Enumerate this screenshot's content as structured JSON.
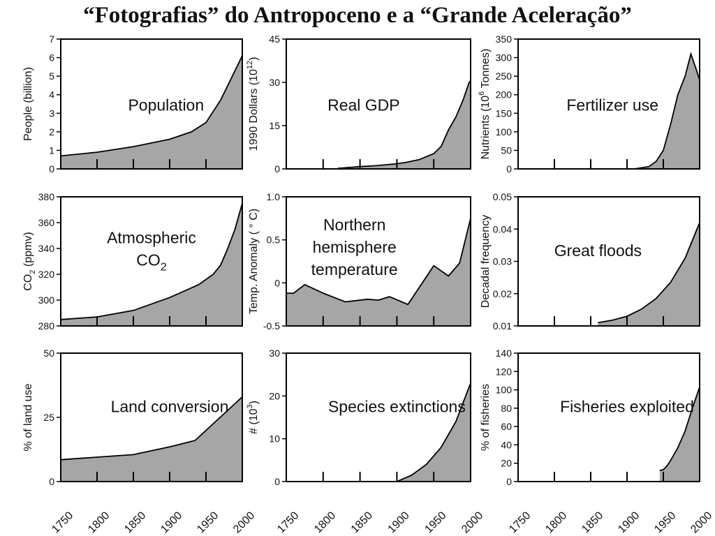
{
  "title": "“Fotografias” do Antropoceno e a “Grande Aceleração”",
  "colors": {
    "fill": "#a6a6a6",
    "line": "#000000",
    "background": "#ffffff"
  },
  "x_axis_ticks": [
    "1750",
    "1800",
    "1850",
    "1900",
    "1950",
    "2000"
  ],
  "chart_data": [
    {
      "id": "population",
      "type": "area",
      "label_lines": [
        "Population"
      ],
      "ylabel": "People (billion)",
      "ylabel_sup": "",
      "ylim": [
        0,
        7
      ],
      "yticks": [
        "0",
        "1",
        "2",
        "3",
        "4",
        "5",
        "6",
        "7"
      ],
      "ytick_values": [
        0,
        1,
        2,
        3,
        4,
        5,
        6,
        7
      ],
      "x": [
        1750,
        1800,
        1850,
        1900,
        1930,
        1950,
        1970,
        1990,
        2000
      ],
      "y": [
        0.7,
        0.9,
        1.2,
        1.6,
        2.0,
        2.5,
        3.7,
        5.3,
        6.1
      ]
    },
    {
      "id": "real-gdp",
      "type": "area",
      "label_lines": [
        "Real GDP"
      ],
      "ylabel": "1990 Dollars (10",
      "ylabel_sup": "12",
      "ylabel_close": ")",
      "ylim": [
        0,
        45
      ],
      "yticks": [
        "0",
        "15",
        "30",
        "45"
      ],
      "ytick_values": [
        0,
        15,
        30,
        45
      ],
      "x": [
        1820,
        1850,
        1870,
        1900,
        1913,
        1930,
        1950,
        1960,
        1970,
        1980,
        1990,
        1998,
        2000
      ],
      "y": [
        0.2,
        0.8,
        1.1,
        1.8,
        2.3,
        3.2,
        5.3,
        7.8,
        13.5,
        18.0,
        24.0,
        30.0,
        30.5
      ]
    },
    {
      "id": "fertilizer-use",
      "type": "area",
      "label_lines": [
        "Fertilizer use"
      ],
      "ylabel": "Nutrients (10",
      "ylabel_sup": "6",
      "ylabel_close": " Tonnes)",
      "ylim": [
        0,
        350
      ],
      "yticks": [
        "0",
        "50",
        "100",
        "150",
        "200",
        "250",
        "300",
        "350"
      ],
      "ytick_values": [
        0,
        50,
        100,
        150,
        200,
        250,
        300,
        350
      ],
      "x": [
        1910,
        1930,
        1940,
        1950,
        1960,
        1970,
        1980,
        1988,
        1995,
        2000
      ],
      "y": [
        0,
        6,
        20,
        50,
        120,
        200,
        250,
        310,
        270,
        240
      ]
    },
    {
      "id": "atmospheric-co2",
      "type": "area",
      "label_lines": [
        "Atmospheric",
        "CO2"
      ],
      "ylabel": "CO2 (ppmv)",
      "ylabel_sup": "",
      "ylim": [
        280,
        380
      ],
      "yticks": [
        "280",
        "300",
        "320",
        "340",
        "360",
        "380"
      ],
      "ytick_values": [
        280,
        300,
        320,
        340,
        360,
        380
      ],
      "x": [
        1750,
        1800,
        1850,
        1900,
        1920,
        1940,
        1960,
        1970,
        1980,
        1990,
        2000
      ],
      "y": [
        285,
        287,
        292,
        302,
        307,
        312,
        320,
        327,
        340,
        355,
        375
      ]
    },
    {
      "id": "nh-temperature",
      "type": "area",
      "label_lines": [
        "Northern",
        "hemisphere",
        "temperature"
      ],
      "ylabel": "Temp. Anomaly ( ° C)",
      "ylabel_sup": "",
      "ylim": [
        -0.5,
        1.0
      ],
      "yticks": [
        "-0.5",
        "0",
        "0.5",
        "1.0"
      ],
      "ytick_values": [
        -0.5,
        0,
        0.5,
        1.0
      ],
      "x": [
        1750,
        1760,
        1775,
        1800,
        1830,
        1860,
        1875,
        1890,
        1915,
        1950,
        1970,
        1985,
        2000
      ],
      "y": [
        -0.12,
        -0.12,
        -0.02,
        -0.12,
        -0.22,
        -0.19,
        -0.2,
        -0.16,
        -0.25,
        0.2,
        0.08,
        0.23,
        0.75
      ]
    },
    {
      "id": "great-floods",
      "type": "area",
      "label_lines": [
        "Great floods"
      ],
      "ylabel": "Decadal frequency",
      "ylabel_sup": "",
      "ylim": [
        0.01,
        0.05
      ],
      "yticks": [
        "0.01",
        "0.02",
        "0.03",
        "0.04",
        "0.05"
      ],
      "ytick_values": [
        0.01,
        0.02,
        0.03,
        0.04,
        0.05
      ],
      "x": [
        1860,
        1880,
        1900,
        1920,
        1940,
        1960,
        1980,
        2000
      ],
      "y": [
        0.011,
        0.0118,
        0.013,
        0.0152,
        0.0185,
        0.0235,
        0.031,
        0.042
      ]
    },
    {
      "id": "land-conversion",
      "type": "area",
      "label_lines": [
        "Land conversion"
      ],
      "ylabel": "% of land use",
      "ylabel_sup": "",
      "ylim": [
        0,
        50
      ],
      "yticks": [
        "0",
        "25",
        "50"
      ],
      "ytick_values": [
        0,
        25,
        50
      ],
      "x": [
        1750,
        1850,
        1900,
        1935,
        2000
      ],
      "y": [
        8.5,
        10.5,
        13.5,
        16,
        33
      ]
    },
    {
      "id": "species-extinctions",
      "type": "area",
      "label_lines": [
        "Species extinctions"
      ],
      "ylabel": "# (10",
      "ylabel_sup": "3",
      "ylabel_close": ")",
      "ylim": [
        0,
        30
      ],
      "yticks": [
        "0",
        "10",
        "20",
        "30"
      ],
      "ytick_values": [
        0,
        10,
        20,
        30
      ],
      "x": [
        1900,
        1920,
        1940,
        1960,
        1980,
        2000
      ],
      "y": [
        0,
        1.5,
        4,
        8,
        14,
        23
      ]
    },
    {
      "id": "fisheries-exploited",
      "type": "area",
      "label_lines": [
        "Fisheries exploited"
      ],
      "ylabel": "% of fisheries",
      "ylabel_sup": "",
      "ylim": [
        0,
        140
      ],
      "yticks": [
        "0",
        "20",
        "40",
        "60",
        "80",
        "100",
        "120",
        "140"
      ],
      "ytick_values": [
        0,
        20,
        40,
        60,
        80,
        100,
        120,
        140
      ],
      "x": [
        1945,
        1950,
        1955,
        1960,
        1970,
        1980,
        1990,
        2000
      ],
      "y": [
        12,
        13,
        17,
        23,
        37,
        55,
        80,
        103
      ]
    }
  ]
}
